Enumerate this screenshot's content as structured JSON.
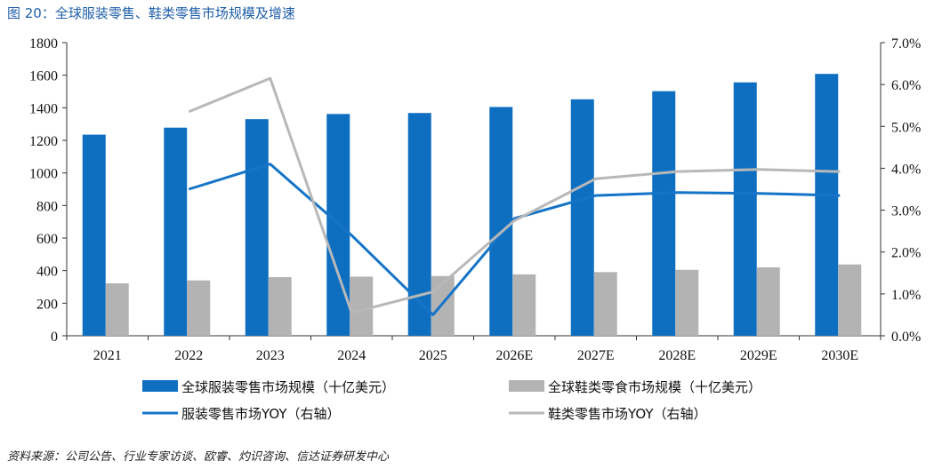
{
  "figure": {
    "title": "图 20：全球服装零售、鞋类零售市场规模及增速",
    "source": "资料来源：公司公告、行业专家访谈、欧睿、灼识咨询、信达证券研发中心"
  },
  "colors": {
    "apparel_bar": "#0e6fc1",
    "footwear_bar": "#b3b3b3",
    "apparel_line": "#1574c7",
    "footwear_line": "#b8b8b8",
    "title": "#1f5fa8"
  },
  "chart_data": {
    "type": "bar",
    "categories": [
      "2021",
      "2022",
      "2023",
      "2024",
      "2025",
      "2026E",
      "2027E",
      "2028E",
      "2029E",
      "2030E"
    ],
    "series": [
      {
        "name": "全球服装零售市场规模（十亿美元）",
        "type": "bar",
        "axis": "left",
        "values": [
          1235,
          1278,
          1330,
          1362,
          1368,
          1405,
          1452,
          1502,
          1556,
          1608
        ]
      },
      {
        "name": "全球鞋类零食市场规模（十亿美元）",
        "type": "bar",
        "axis": "left",
        "values": [
          322,
          340,
          360,
          363,
          367,
          377,
          391,
          405,
          420,
          438
        ]
      },
      {
        "name": "服装零售市场YOY（右轴）",
        "type": "line",
        "axis": "right",
        "values": [
          null,
          3.5,
          4.1,
          2.4,
          0.5,
          2.8,
          3.35,
          3.42,
          3.4,
          3.35
        ]
      },
      {
        "name": "鞋类零售市场YOY（右轴）",
        "type": "line",
        "axis": "right",
        "values": [
          null,
          5.35,
          6.15,
          0.55,
          1.05,
          2.75,
          3.75,
          3.92,
          3.97,
          3.92
        ]
      }
    ],
    "y_left": {
      "min": 0,
      "max": 1800,
      "step": 200,
      "ticks": [
        "0",
        "200",
        "400",
        "600",
        "800",
        "1000",
        "1200",
        "1400",
        "1600",
        "1800"
      ]
    },
    "y_right": {
      "min": 0,
      "max": 7,
      "step": 1,
      "ticks": [
        "0.0%",
        "1.0%",
        "2.0%",
        "3.0%",
        "4.0%",
        "5.0%",
        "6.0%",
        "7.0%"
      ]
    },
    "grid": false,
    "legend_position": "bottom"
  }
}
